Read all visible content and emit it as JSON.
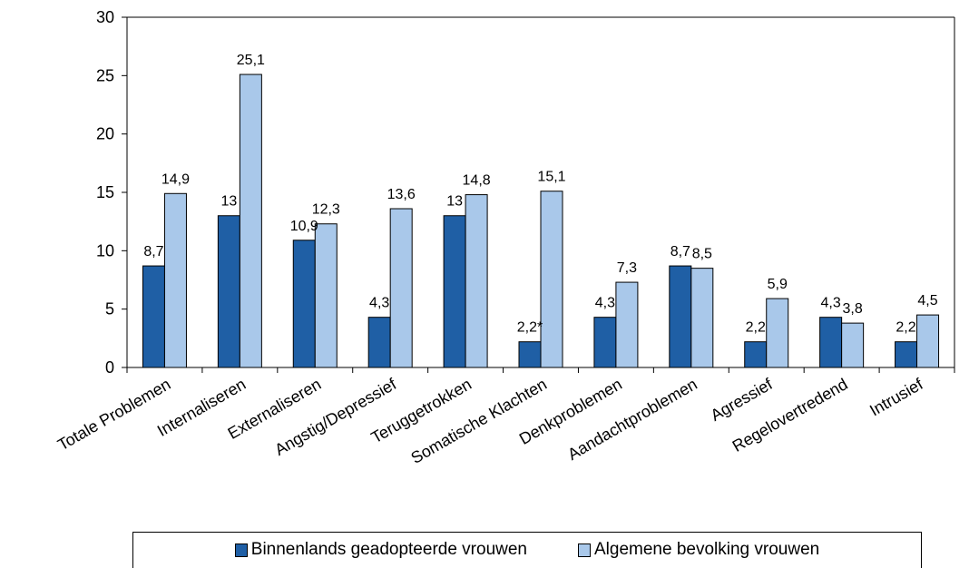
{
  "chart_data": {
    "type": "bar",
    "title": "",
    "xlabel": "",
    "ylabel": "",
    "ylim": [
      0,
      30
    ],
    "yticks": [
      0,
      5,
      10,
      15,
      20,
      25,
      30
    ],
    "grid": false,
    "legend_position": "bottom",
    "categories": [
      "Totale Problemen",
      "Internaliseren",
      "Externaliseren",
      "Angstig/Depressief",
      "Teruggetrokken",
      "Somatische Klachten",
      "Denkproblemen",
      "Aandachtproblemen",
      "Agressief",
      "Regelovertredend",
      "Intrusief"
    ],
    "series": [
      {
        "name": "Binnenlands geadopteerde vrouwen",
        "color": "#1f5fa5",
        "values": [
          8.7,
          13,
          10.9,
          4.3,
          13,
          2.2,
          4.3,
          8.7,
          2.2,
          4.3,
          2.2
        ],
        "labels": [
          "8,7",
          "13",
          "10,9",
          "4,3",
          "13",
          "2,2*",
          "4,3",
          "8,7",
          "2,2",
          "4,3",
          "2,2"
        ]
      },
      {
        "name": "Algemene bevolking vrouwen",
        "color": "#a9c8ea",
        "values": [
          14.9,
          25.1,
          12.3,
          13.6,
          14.8,
          15.1,
          7.3,
          8.5,
          5.9,
          3.8,
          4.5
        ],
        "labels": [
          "14,9",
          "25,1",
          "12,3",
          "13,6",
          "14,8",
          "15,1",
          "7,3",
          "8,5",
          "5,9",
          "3,8",
          "4,5"
        ]
      }
    ]
  }
}
